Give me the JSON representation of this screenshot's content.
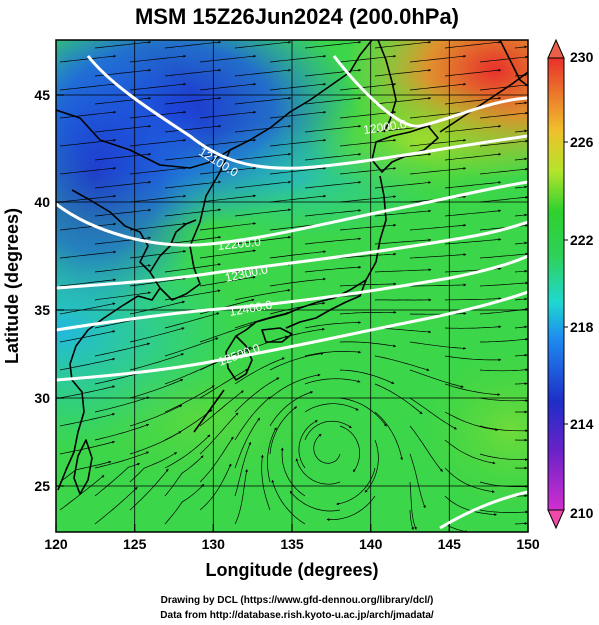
{
  "title": "MSM 15Z26Jun2024 (200.0hPa)",
  "x_axis": {
    "label": "Longitude (degrees)",
    "range": [
      120,
      150
    ],
    "ticks": [
      "120",
      "125",
      "130",
      "135",
      "140",
      "145",
      "150"
    ]
  },
  "y_axis": {
    "label": "Latitude  (degrees)",
    "range": [
      22.4,
      47.6
    ],
    "ticks": [
      "25",
      "30",
      "35",
      "40",
      "45"
    ]
  },
  "colorbar": {
    "range": [
      210,
      230
    ],
    "ticks": [
      "210",
      "214",
      "218",
      "222",
      "226",
      "230"
    ],
    "colors": [
      "#d12fd0",
      "#1e1ec8",
      "#1fa6ff",
      "#1fe0b4",
      "#2ed12e",
      "#c6e82b",
      "#f5a52b",
      "#e8302b"
    ]
  },
  "contours": [
    {
      "label": "12000.0"
    },
    {
      "label": "12100.0"
    },
    {
      "label": "12200.0"
    },
    {
      "label": "12300.0"
    },
    {
      "label": "12400.0"
    },
    {
      "label": "12500.0"
    }
  ],
  "credits": {
    "line1": "Drawing by DCL (https://www.gfd-dennou.org/library/dcl/)",
    "line2": "Data from http://database.rish.kyoto-u.ac.jp/arch/jmadata/"
  }
}
